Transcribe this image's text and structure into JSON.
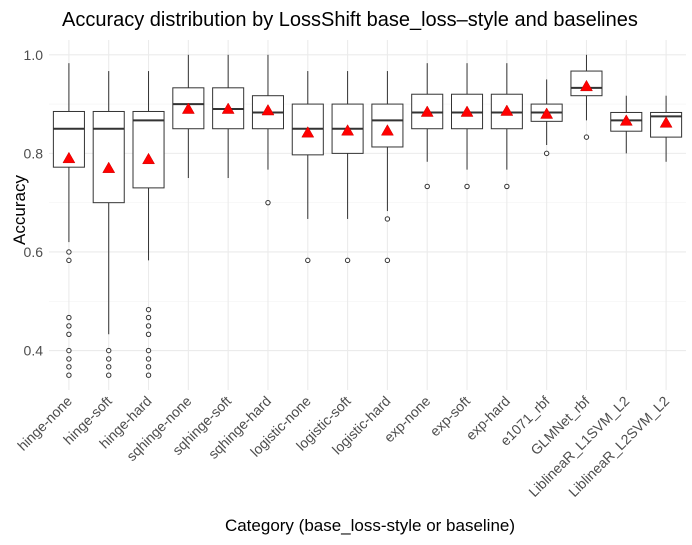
{
  "chart_data": {
    "type": "boxplot",
    "title": "Accuracy distribution by LossShift base_loss–style and baselines",
    "xlabel": "Category (base_loss-style or baseline)",
    "ylabel": "Accuracy",
    "ylim": [
      0.32,
      1.03
    ],
    "yticks": [
      0.4,
      0.6,
      0.8,
      1.0
    ],
    "ytick_labels": [
      "0.4",
      "0.6",
      "0.8",
      "1.0"
    ],
    "grid": true,
    "mean_marker_color": "#ff0000",
    "categories": [
      "hinge-none",
      "hinge-soft",
      "hinge-hard",
      "sqhinge-none",
      "sqhinge-soft",
      "sqhinge-hard",
      "logistic-none",
      "logistic-soft",
      "logistic-hard",
      "exp-none",
      "exp-soft",
      "exp-hard",
      "e1071_rbf",
      "GLMNet_rbf",
      "LiblineaR_L1SVM_L2",
      "LiblineaR_L2SVM_L2"
    ],
    "boxes": [
      {
        "whisker_low": 0.62,
        "q1": 0.772,
        "median": 0.85,
        "q3": 0.885,
        "whisker_high": 0.983,
        "mean": 0.79,
        "outliers": [
          0.6,
          0.583,
          0.467,
          0.45,
          0.433,
          0.4,
          0.383,
          0.367,
          0.35
        ]
      },
      {
        "whisker_low": 0.433,
        "q1": 0.7,
        "median": 0.85,
        "q3": 0.885,
        "whisker_high": 0.967,
        "mean": 0.77,
        "outliers": [
          0.4,
          0.383,
          0.367,
          0.35
        ]
      },
      {
        "whisker_low": 0.583,
        "q1": 0.73,
        "median": 0.867,
        "q3": 0.885,
        "whisker_high": 0.967,
        "mean": 0.788,
        "outliers": [
          0.483,
          0.467,
          0.45,
          0.433,
          0.4,
          0.383,
          0.367,
          0.35
        ]
      },
      {
        "whisker_low": 0.75,
        "q1": 0.85,
        "median": 0.9,
        "q3": 0.933,
        "whisker_high": 1.0,
        "mean": 0.89,
        "outliers": []
      },
      {
        "whisker_low": 0.75,
        "q1": 0.85,
        "median": 0.89,
        "q3": 0.933,
        "whisker_high": 1.0,
        "mean": 0.89,
        "outliers": []
      },
      {
        "whisker_low": 0.767,
        "q1": 0.85,
        "median": 0.883,
        "q3": 0.917,
        "whisker_high": 1.0,
        "mean": 0.887,
        "outliers": [
          0.7
        ]
      },
      {
        "whisker_low": 0.667,
        "q1": 0.797,
        "median": 0.85,
        "q3": 0.9,
        "whisker_high": 0.967,
        "mean": 0.842,
        "outliers": [
          0.583
        ]
      },
      {
        "whisker_low": 0.667,
        "q1": 0.8,
        "median": 0.85,
        "q3": 0.9,
        "whisker_high": 0.967,
        "mean": 0.846,
        "outliers": [
          0.583
        ]
      },
      {
        "whisker_low": 0.683,
        "q1": 0.813,
        "median": 0.867,
        "q3": 0.9,
        "whisker_high": 0.967,
        "mean": 0.846,
        "outliers": [
          0.667,
          0.583
        ]
      },
      {
        "whisker_low": 0.783,
        "q1": 0.85,
        "median": 0.883,
        "q3": 0.92,
        "whisker_high": 0.983,
        "mean": 0.884,
        "outliers": [
          0.733
        ]
      },
      {
        "whisker_low": 0.767,
        "q1": 0.85,
        "median": 0.883,
        "q3": 0.92,
        "whisker_high": 0.983,
        "mean": 0.884,
        "outliers": [
          0.733
        ]
      },
      {
        "whisker_low": 0.767,
        "q1": 0.85,
        "median": 0.883,
        "q3": 0.92,
        "whisker_high": 0.983,
        "mean": 0.886,
        "outliers": [
          0.733
        ]
      },
      {
        "whisker_low": 0.817,
        "q1": 0.865,
        "median": 0.883,
        "q3": 0.9,
        "whisker_high": 0.95,
        "mean": 0.88,
        "outliers": [
          0.8
        ]
      },
      {
        "whisker_low": 0.867,
        "q1": 0.917,
        "median": 0.933,
        "q3": 0.967,
        "whisker_high": 1.0,
        "mean": 0.936,
        "outliers": [
          0.833
        ]
      },
      {
        "whisker_low": 0.8,
        "q1": 0.845,
        "median": 0.867,
        "q3": 0.883,
        "whisker_high": 0.917,
        "mean": 0.866,
        "outliers": []
      },
      {
        "whisker_low": 0.783,
        "q1": 0.833,
        "median": 0.875,
        "q3": 0.883,
        "whisker_high": 0.917,
        "mean": 0.862,
        "outliers": []
      }
    ]
  }
}
